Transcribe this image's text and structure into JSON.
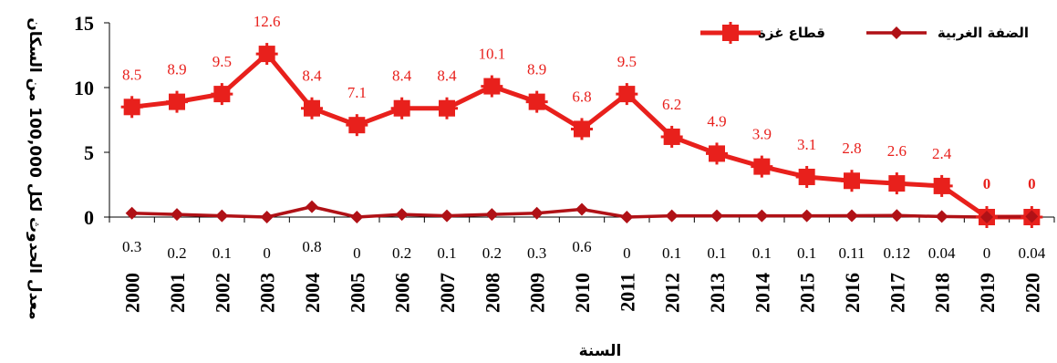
{
  "chart_data": {
    "type": "line",
    "xlabel": "السنة",
    "ylabel": "معدل الحدوث لكل 100,000 من السكان",
    "ylim": [
      0,
      15
    ],
    "yticks": [
      "0",
      "5",
      "10",
      "15"
    ],
    "categories": [
      "2000",
      "2001",
      "2002",
      "2003",
      "2004",
      "2005",
      "2006",
      "2007",
      "2008",
      "2009",
      "2010",
      "2011",
      "2012",
      "2013",
      "2014",
      "2015",
      "2016",
      "2017",
      "2018",
      "2019",
      "2020"
    ],
    "series": [
      {
        "name": "قطاع غزة",
        "color": "#e8201c",
        "marker": "square",
        "values": [
          8.5,
          8.9,
          9.5,
          12.6,
          8.4,
          7.1,
          8.4,
          8.4,
          10.1,
          8.9,
          6.8,
          9.5,
          6.2,
          4.9,
          3.9,
          3.1,
          2.8,
          2.6,
          2.4,
          0,
          0
        ],
        "labels": [
          "8.5",
          "8.9",
          "9.5",
          "12.6",
          "8.4",
          "7.1",
          "8.4",
          "8.4",
          "10.1",
          "8.9",
          "6.8",
          "9.5",
          "6.2",
          "4.9",
          "3.9",
          "3.1",
          "2.8",
          "2.6",
          "2.4",
          "0",
          "0"
        ]
      },
      {
        "name": "الضفة الغربية",
        "color": "#b01116",
        "marker": "diamond",
        "values": [
          0.3,
          0.2,
          0.1,
          0,
          0.8,
          0,
          0.2,
          0.1,
          0.2,
          0.3,
          0.6,
          0,
          0.1,
          0.1,
          0.1,
          0.1,
          0.11,
          0.12,
          0.04,
          0,
          0.04
        ],
        "labels": [
          "0.3",
          "0.2",
          "0.1",
          "0",
          "0.8",
          "0",
          "0.2",
          "0.1",
          "0.2",
          "0.3",
          "0.6",
          "0",
          "0.1",
          "0.1",
          "0.1",
          "0.1",
          "0.11",
          "0.12",
          "0.04",
          "0",
          "0.04"
        ]
      }
    ],
    "legend": "top-right",
    "grid": false
  }
}
